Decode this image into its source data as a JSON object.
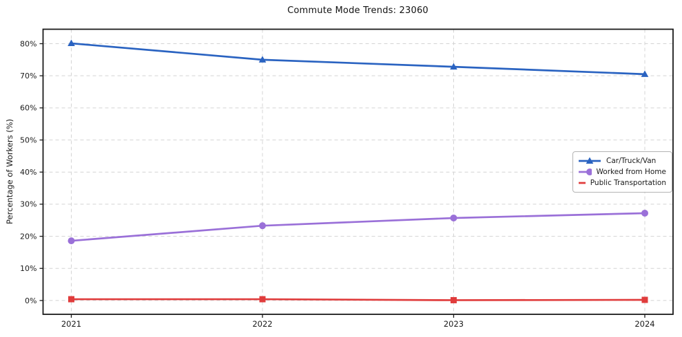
{
  "title": "Commute Mode Trends: 23060",
  "axes": {
    "ylabel": "Percentage of Workers (%)",
    "yticks": [
      0,
      10,
      20,
      30,
      40,
      50,
      60,
      70,
      80
    ],
    "ytick_suffix": "%",
    "xticks": [
      "2021",
      "2022",
      "2023",
      "2024"
    ]
  },
  "legend": {
    "items": [
      {
        "label": "Car/Truck/Van",
        "marker": "triangle-marker-icon"
      },
      {
        "label": "Worked from Home",
        "marker": "circle-marker-icon"
      },
      {
        "label": "Public Transportation",
        "marker": "square-marker-icon"
      }
    ]
  },
  "chart_data": {
    "type": "line",
    "title": "Commute Mode Trends: 23060",
    "xlabel": "",
    "ylabel": "Percentage of Workers (%)",
    "categories": [
      "2021",
      "2022",
      "2023",
      "2024"
    ],
    "series": [
      {
        "name": "Car/Truck/Van",
        "color": "#2a63c1",
        "marker": "triangle",
        "values": [
          80.1,
          75.0,
          72.8,
          70.5
        ]
      },
      {
        "name": "Worked from Home",
        "color": "#9a70d8",
        "marker": "circle",
        "values": [
          18.6,
          23.3,
          25.7,
          27.2
        ]
      },
      {
        "name": "Public Transportation",
        "color": "#e03c3c",
        "marker": "square",
        "values": [
          0.4,
          0.4,
          0.1,
          0.2
        ]
      }
    ],
    "ylim": [
      -4.3,
      84.5
    ],
    "grid": true,
    "grid_color": "#d4d4d4",
    "frame_color": "#1a1a1a",
    "tick_label_color": "#1a1a1a",
    "background": "#ffffff",
    "legend_position": "center-right"
  }
}
